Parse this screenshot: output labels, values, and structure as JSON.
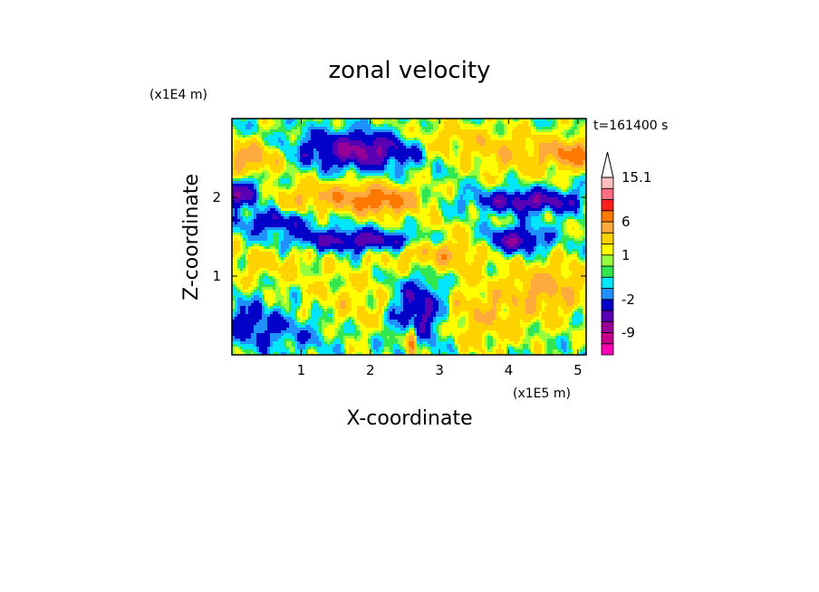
{
  "chart_data": {
    "type": "heatmap",
    "title": "zonal velocity",
    "xlabel": "X-coordinate",
    "ylabel": "Z-coordinate",
    "x_unit_label": "(x1E5 m)",
    "y_unit_label": "(x1E4 m)",
    "time_label": "t=161400 s",
    "x_ticks": [
      "1",
      "2",
      "3",
      "4",
      "5"
    ],
    "x_tick_values": [
      1,
      2,
      3,
      4,
      5
    ],
    "y_ticks": [
      "1",
      "2"
    ],
    "y_tick_values": [
      1,
      2
    ],
    "xlim": [
      0,
      5.12
    ],
    "ylim": [
      0,
      3.0
    ],
    "colorbar": {
      "labels": [
        "15.1",
        "6",
        "1",
        "-2",
        "-9"
      ],
      "label_values": [
        15.1,
        6,
        1,
        -2,
        -9
      ],
      "levels": [
        -15,
        -12,
        -9,
        -6,
        -4,
        -2,
        -1,
        0,
        0.5,
        1,
        2,
        4,
        6,
        9,
        12,
        15.1
      ],
      "colors": [
        "#ff00b4",
        "#c8008c",
        "#960096",
        "#5a00b4",
        "#0000c8",
        "#2090ff",
        "#00e6ff",
        "#32e650",
        "#96ff3c",
        "#ffff00",
        "#ffd200",
        "#ffaa3c",
        "#ff7800",
        "#ff1e1e",
        "#ff6e82",
        "#ffbebe"
      ]
    },
    "features": [
      {
        "x": 0.25,
        "z": 2.5,
        "u": 5,
        "sx": 0.35,
        "sz": 0.14
      },
      {
        "x": 1.9,
        "z": 2.6,
        "u": -7,
        "sx": 0.65,
        "sz": 0.16
      },
      {
        "x": 3.0,
        "z": 2.7,
        "u": 3,
        "sx": 0.5,
        "sz": 0.18
      },
      {
        "x": 4.2,
        "z": 2.55,
        "u": 3,
        "sx": 0.5,
        "sz": 0.2
      },
      {
        "x": 4.95,
        "z": 2.55,
        "u": 6,
        "sx": 0.22,
        "sz": 0.12
      },
      {
        "x": 0.1,
        "z": 2.05,
        "u": -6,
        "sx": 0.25,
        "sz": 0.12
      },
      {
        "x": 1.5,
        "z": 2.0,
        "u": 4,
        "sx": 0.7,
        "sz": 0.14
      },
      {
        "x": 2.2,
        "z": 1.95,
        "u": 5,
        "sx": 0.35,
        "sz": 0.12
      },
      {
        "x": 4.3,
        "z": 1.95,
        "u": -6,
        "sx": 0.55,
        "sz": 0.1
      },
      {
        "x": 0.6,
        "z": 1.7,
        "u": -4,
        "sx": 0.4,
        "sz": 0.1
      },
      {
        "x": 2.0,
        "z": 1.45,
        "u": -6,
        "sx": 0.9,
        "sz": 0.1
      },
      {
        "x": 3.0,
        "z": 1.35,
        "u": 5,
        "sx": 0.55,
        "sz": 0.18
      },
      {
        "x": 4.1,
        "z": 1.45,
        "u": -6,
        "sx": 0.3,
        "sz": 0.12
      },
      {
        "x": 0.5,
        "z": 1.2,
        "u": 2,
        "sx": 0.6,
        "sz": 0.2
      },
      {
        "x": 4.6,
        "z": 0.85,
        "u": 4,
        "sx": 0.4,
        "sz": 0.25
      },
      {
        "x": 2.7,
        "z": 0.55,
        "u": -6,
        "sx": 0.28,
        "sz": 0.3
      },
      {
        "x": 0.25,
        "z": 0.4,
        "u": -3,
        "sx": 0.3,
        "sz": 0.2
      },
      {
        "x": 1.8,
        "z": 0.6,
        "u": 2,
        "sx": 0.6,
        "sz": 0.3
      },
      {
        "x": 3.6,
        "z": 0.5,
        "u": 3,
        "sx": 0.5,
        "sz": 0.3
      },
      {
        "x": 1.0,
        "z": 0.3,
        "u": -2,
        "sx": 0.5,
        "sz": 0.2
      },
      {
        "x": 2.6,
        "z": 0.15,
        "u": 9,
        "sx": 0.05,
        "sz": 0.15
      }
    ]
  }
}
